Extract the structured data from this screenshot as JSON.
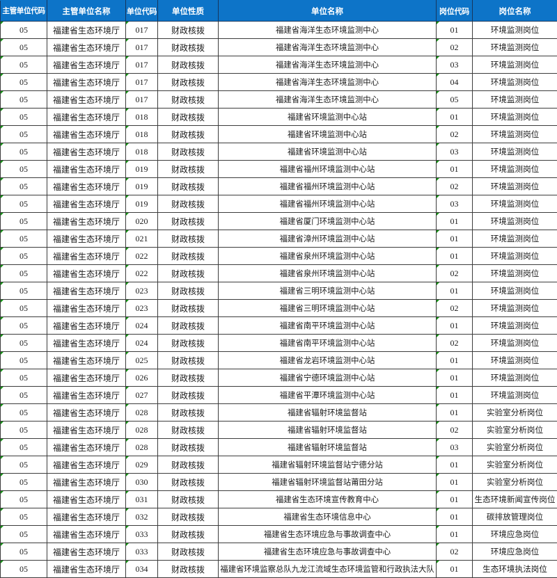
{
  "table": {
    "columns": [
      {
        "key": "supervisor-unit-code",
        "label": "主管单位代码"
      },
      {
        "key": "supervisor-unit-name",
        "label": "主管单位名称"
      },
      {
        "key": "unit-code",
        "label": "单位代码"
      },
      {
        "key": "unit-nature",
        "label": "单位性质"
      },
      {
        "key": "unit-name",
        "label": "单位名称"
      },
      {
        "key": "post-code",
        "label": "岗位代码"
      },
      {
        "key": "post-name",
        "label": "岗位名称"
      }
    ],
    "indicator_columns": [
      0,
      2,
      5
    ],
    "rows": [
      [
        "05",
        "福建省生态环境厅",
        "017",
        "财政核拨",
        "福建省海洋生态环境监测中心",
        "01",
        "环境监测岗位"
      ],
      [
        "05",
        "福建省生态环境厅",
        "017",
        "财政核拨",
        "福建省海洋生态环境监测中心",
        "02",
        "环境监测岗位"
      ],
      [
        "05",
        "福建省生态环境厅",
        "017",
        "财政核拨",
        "福建省海洋生态环境监测中心",
        "03",
        "环境监测岗位"
      ],
      [
        "05",
        "福建省生态环境厅",
        "017",
        "财政核拨",
        "福建省海洋生态环境监测中心",
        "04",
        "环境监测岗位"
      ],
      [
        "05",
        "福建省生态环境厅",
        "017",
        "财政核拨",
        "福建省海洋生态环境监测中心",
        "05",
        "环境监测岗位"
      ],
      [
        "05",
        "福建省生态环境厅",
        "018",
        "财政核拨",
        "福建省环境监测中心站",
        "01",
        "环境监测岗位"
      ],
      [
        "05",
        "福建省生态环境厅",
        "018",
        "财政核拨",
        "福建省环境监测中心站",
        "02",
        "环境监测岗位"
      ],
      [
        "05",
        "福建省生态环境厅",
        "018",
        "财政核拨",
        "福建省环境监测中心站",
        "03",
        "环境监测岗位"
      ],
      [
        "05",
        "福建省生态环境厅",
        "019",
        "财政核拨",
        "福建省福州环境监测中心站",
        "01",
        "环境监测岗位"
      ],
      [
        "05",
        "福建省生态环境厅",
        "019",
        "财政核拨",
        "福建省福州环境监测中心站",
        "02",
        "环境监测岗位"
      ],
      [
        "05",
        "福建省生态环境厅",
        "019",
        "财政核拨",
        "福建省福州环境监测中心站",
        "03",
        "环境监测岗位"
      ],
      [
        "05",
        "福建省生态环境厅",
        "020",
        "财政核拨",
        "福建省厦门环境监测中心站",
        "01",
        "环境监测岗位"
      ],
      [
        "05",
        "福建省生态环境厅",
        "021",
        "财政核拨",
        "福建省漳州环境监测中心站",
        "01",
        "环境监测岗位"
      ],
      [
        "05",
        "福建省生态环境厅",
        "022",
        "财政核拨",
        "福建省泉州环境监测中心站",
        "01",
        "环境监测岗位"
      ],
      [
        "05",
        "福建省生态环境厅",
        "022",
        "财政核拨",
        "福建省泉州环境监测中心站",
        "02",
        "环境监测岗位"
      ],
      [
        "05",
        "福建省生态环境厅",
        "023",
        "财政核拨",
        "福建省三明环境监测中心站",
        "01",
        "环境监测岗位"
      ],
      [
        "05",
        "福建省生态环境厅",
        "023",
        "财政核拨",
        "福建省三明环境监测中心站",
        "02",
        "环境监测岗位"
      ],
      [
        "05",
        "福建省生态环境厅",
        "024",
        "财政核拨",
        "福建省南平环境监测中心站",
        "01",
        "环境监测岗位"
      ],
      [
        "05",
        "福建省生态环境厅",
        "024",
        "财政核拨",
        "福建省南平环境监测中心站",
        "02",
        "环境监测岗位"
      ],
      [
        "05",
        "福建省生态环境厅",
        "025",
        "财政核拨",
        "福建省龙岩环境监测中心站",
        "01",
        "环境监测岗位"
      ],
      [
        "05",
        "福建省生态环境厅",
        "026",
        "财政核拨",
        "福建省宁德环境监测中心站",
        "01",
        "环境监测岗位"
      ],
      [
        "05",
        "福建省生态环境厅",
        "027",
        "财政核拨",
        "福建省平潭环境监测中心站",
        "01",
        "环境监测岗位"
      ],
      [
        "05",
        "福建省生态环境厅",
        "028",
        "财政核拨",
        "福建省辐射环境监督站",
        "01",
        "实验室分析岗位"
      ],
      [
        "05",
        "福建省生态环境厅",
        "028",
        "财政核拨",
        "福建省辐射环境监督站",
        "02",
        "实验室分析岗位"
      ],
      [
        "05",
        "福建省生态环境厅",
        "028",
        "财政核拨",
        "福建省辐射环境监督站",
        "03",
        "实验室分析岗位"
      ],
      [
        "05",
        "福建省生态环境厅",
        "029",
        "财政核拨",
        "福建省辐射环境监督站宁德分站",
        "01",
        "实验室分析岗位"
      ],
      [
        "05",
        "福建省生态环境厅",
        "030",
        "财政核拨",
        "福建省辐射环境监督站莆田分站",
        "01",
        "实验室分析岗位"
      ],
      [
        "05",
        "福建省生态环境厅",
        "031",
        "财政核拨",
        "福建省生态环境宣传教育中心",
        "01",
        "生态环境新闻宣传岗位"
      ],
      [
        "05",
        "福建省生态环境厅",
        "032",
        "财政核拨",
        "福建省生态环境信息中心",
        "01",
        "碳排放管理岗位"
      ],
      [
        "05",
        "福建省生态环境厅",
        "033",
        "财政核拨",
        "福建省生态环境应急与事故调查中心",
        "01",
        "环境应急岗位"
      ],
      [
        "05",
        "福建省生态环境厅",
        "033",
        "财政核拨",
        "福建省生态环境应急与事故调查中心",
        "02",
        "环境应急岗位"
      ],
      [
        "05",
        "福建省生态环境厅",
        "034",
        "财政核拨",
        "福建省环境监察总队九龙江流域生态环境监管和行政执法大队",
        "01",
        "生态环境执法岗位"
      ]
    ]
  },
  "colors": {
    "header_bg": "#0d74c8",
    "header_border": "#17365d",
    "grid": "#3c3c3c",
    "indicator_green": "#149414",
    "header_text": "#ffffff"
  }
}
